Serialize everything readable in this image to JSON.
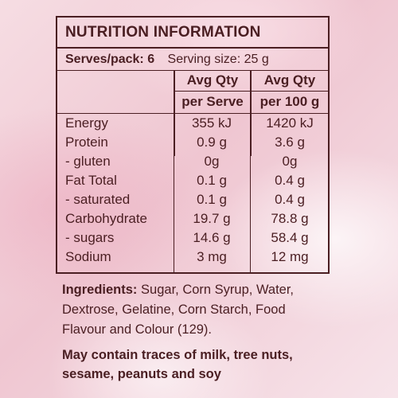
{
  "panel": {
    "title": "NUTRITION INFORMATION",
    "serves_label": "Serves/pack:",
    "serves_value": "6",
    "serving_size_label": "Serving size:",
    "serving_size_value": "25 g",
    "columns": {
      "col1_line1": "Avg Qty",
      "col1_line2": "per Serve",
      "col2_line1": "Avg Qty",
      "col2_line2": "per 100 g"
    },
    "rows": [
      {
        "label": "Energy",
        "per_serve": "355 kJ",
        "per_100g": "1420 kJ"
      },
      {
        "label": "Protein",
        "per_serve": "0.9  g",
        "per_100g": "3.6 g"
      },
      {
        "label": "- gluten",
        "per_serve": "0g",
        "per_100g": "0g"
      },
      {
        "label": "Fat Total",
        "per_serve": "0.1  g",
        "per_100g": "0.4  g"
      },
      {
        "label": "- saturated",
        "per_serve": "0.1 g",
        "per_100g": "0.4 g"
      },
      {
        "label": "Carbohydrate",
        "per_serve": "19.7 g",
        "per_100g": "78.8 g"
      },
      {
        "label": "- sugars",
        "per_serve": "14.6 g",
        "per_100g": "58.4 g"
      },
      {
        "label": "Sodium",
        "per_serve": "3 mg",
        "per_100g": "12 mg"
      }
    ]
  },
  "ingredients": {
    "label": "Ingredients:",
    "text": "Sugar, Corn Syrup, Water, Dextrose, Gelatine, Corn Starch, Food Flavour and Colour (129)."
  },
  "allergen": "May contain traces of milk, tree nuts, sesame, peanuts and soy"
}
